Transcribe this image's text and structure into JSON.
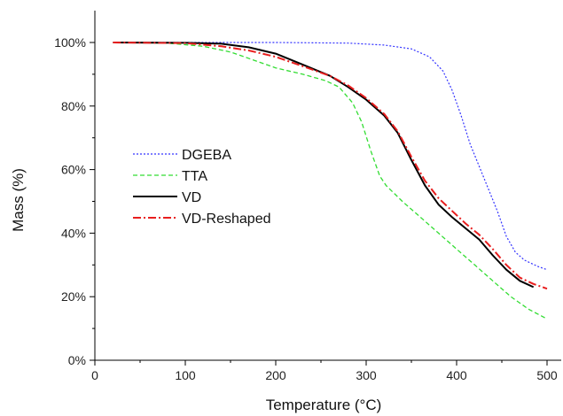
{
  "chart_data": {
    "type": "line",
    "xlabel": "Temperature (°C)",
    "ylabel": "Mass (%)",
    "xlim": [
      0,
      500
    ],
    "ylim": [
      0,
      100
    ],
    "xticks": [
      "0",
      "100",
      "200",
      "300",
      "400",
      "500"
    ],
    "yticks": [
      "0%",
      "20%",
      "40%",
      "60%",
      "80%",
      "100%"
    ],
    "grid": false,
    "legend_position": "center-left",
    "series": [
      {
        "name": "DGEBA",
        "color": "#3333ff",
        "dash": "dotted",
        "points": [
          [
            20,
            100
          ],
          [
            100,
            100
          ],
          [
            200,
            100
          ],
          [
            280,
            99.8
          ],
          [
            320,
            99.2
          ],
          [
            350,
            98
          ],
          [
            370,
            95.5
          ],
          [
            385,
            91
          ],
          [
            395,
            85
          ],
          [
            405,
            77
          ],
          [
            415,
            68
          ],
          [
            425,
            61
          ],
          [
            435,
            54
          ],
          [
            445,
            47
          ],
          [
            455,
            39
          ],
          [
            465,
            34
          ],
          [
            475,
            31.5
          ],
          [
            490,
            29.5
          ],
          [
            500,
            28.5
          ]
        ]
      },
      {
        "name": "TTA",
        "color": "#33dd33",
        "dash": "dashed",
        "points": [
          [
            20,
            100
          ],
          [
            80,
            99.8
          ],
          [
            120,
            98.8
          ],
          [
            150,
            97
          ],
          [
            175,
            94.5
          ],
          [
            200,
            92
          ],
          [
            230,
            90
          ],
          [
            255,
            88
          ],
          [
            270,
            86
          ],
          [
            285,
            81
          ],
          [
            295,
            75
          ],
          [
            305,
            66
          ],
          [
            315,
            58
          ],
          [
            322,
            55
          ],
          [
            340,
            50
          ],
          [
            360,
            45
          ],
          [
            380,
            40
          ],
          [
            400,
            35
          ],
          [
            420,
            30
          ],
          [
            440,
            25
          ],
          [
            460,
            20
          ],
          [
            480,
            16
          ],
          [
            500,
            13
          ]
        ]
      },
      {
        "name": "VD",
        "color": "#000000",
        "dash": "solid",
        "points": [
          [
            20,
            100
          ],
          [
            100,
            99.9
          ],
          [
            140,
            99.6
          ],
          [
            170,
            98.5
          ],
          [
            200,
            96.5
          ],
          [
            230,
            93
          ],
          [
            260,
            89.5
          ],
          [
            280,
            86
          ],
          [
            300,
            82
          ],
          [
            320,
            77
          ],
          [
            335,
            71.5
          ],
          [
            350,
            63
          ],
          [
            365,
            55
          ],
          [
            380,
            49
          ],
          [
            395,
            45
          ],
          [
            410,
            41.5
          ],
          [
            425,
            38
          ],
          [
            440,
            33
          ],
          [
            455,
            28.5
          ],
          [
            470,
            25
          ],
          [
            485,
            23
          ]
        ]
      },
      {
        "name": "VD-Reshaped",
        "color": "#e81e1e",
        "dash": "dashdot",
        "points": [
          [
            20,
            100
          ],
          [
            100,
            99.8
          ],
          [
            140,
            98.8
          ],
          [
            170,
            97.5
          ],
          [
            200,
            95.5
          ],
          [
            230,
            92.5
          ],
          [
            260,
            89.5
          ],
          [
            280,
            86.5
          ],
          [
            300,
            82.5
          ],
          [
            320,
            77.5
          ],
          [
            335,
            72
          ],
          [
            350,
            64
          ],
          [
            365,
            56.5
          ],
          [
            380,
            51
          ],
          [
            395,
            47
          ],
          [
            410,
            43
          ],
          [
            425,
            39.5
          ],
          [
            440,
            35
          ],
          [
            455,
            30
          ],
          [
            470,
            26
          ],
          [
            485,
            24
          ],
          [
            500,
            22.5
          ]
        ]
      }
    ]
  }
}
